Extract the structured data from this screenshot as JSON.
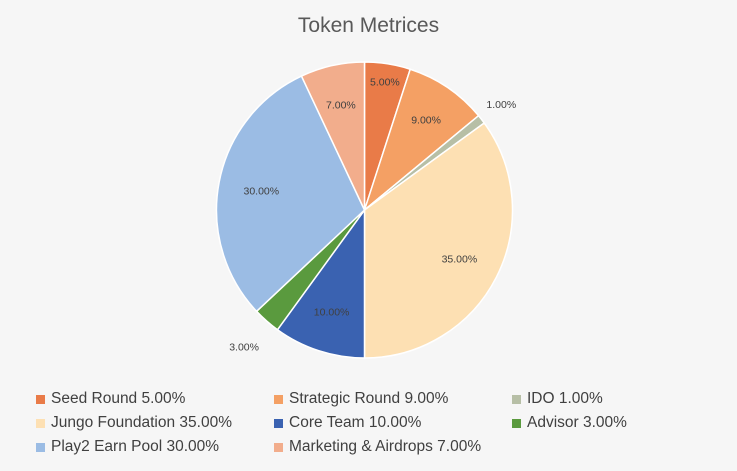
{
  "chart_data": {
    "type": "pie",
    "title": "Token Metrices",
    "slices": [
      {
        "label": "Seed Round",
        "value": 5.0,
        "data_label": "5.00%",
        "legend": "Seed Round 5.00%",
        "color": "#e97b48"
      },
      {
        "label": "Strategic Round",
        "value": 9.0,
        "data_label": "9.00%",
        "legend": "Strategic Round 9.00%",
        "color": "#f4a064"
      },
      {
        "label": "IDO",
        "value": 1.0,
        "data_label": "1.00%",
        "legend": "IDO 1.00%",
        "color": "#b7bfa6"
      },
      {
        "label": "Jungo Foundation",
        "value": 35.0,
        "data_label": "35.00%",
        "legend": "Jungo Foundation 35.00%",
        "color": "#fde0b3"
      },
      {
        "label": "Core Team",
        "value": 10.0,
        "data_label": "10.00%",
        "legend": "Core Team 10.00%",
        "color": "#3a62b1"
      },
      {
        "label": "Advisor",
        "value": 3.0,
        "data_label": "3.00%",
        "legend": "Advisor 3.00%",
        "color": "#5a9a3e"
      },
      {
        "label": "Play2 Earn Pool",
        "value": 30.0,
        "data_label": "30.00%",
        "legend": "Play2 Earn Pool 30.00%",
        "color": "#9bbce4"
      },
      {
        "label": "Marketing & Airdrops",
        "value": 7.0,
        "data_label": "7.00%",
        "legend": "Marketing & Airdrops 7.00%",
        "color": "#f2ad8c"
      }
    ],
    "legend_position": "bottom"
  }
}
